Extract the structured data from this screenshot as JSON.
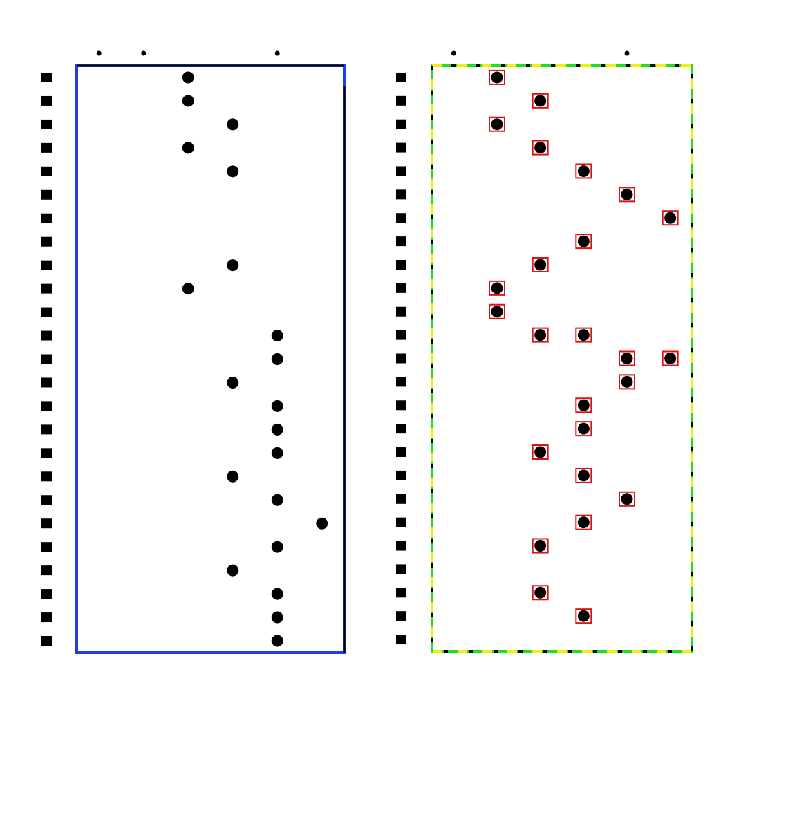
{
  "colors": {
    "left_frame": "#1f3fe0",
    "right_frame_a": "#22dd22",
    "right_frame_b": "#f2ee10",
    "dot": "#000000",
    "highlight_box": "#e01010",
    "background": "#ffffff"
  },
  "chart_data": [
    {
      "type": "scatter",
      "title": "",
      "xlabel": "",
      "ylabel": "",
      "grid": false,
      "legend": "none",
      "xlim": [
        0.5,
        6.5
      ],
      "ylim": [
        0.5,
        25.5
      ],
      "x_ticks": [
        {
          "value": 1,
          "label": ""
        },
        {
          "value": 2,
          "label": ""
        },
        {
          "value": 5,
          "label": ""
        }
      ],
      "row_labels": [
        "",
        "",
        "",
        "",
        "",
        "",
        "",
        "",
        "",
        "",
        "",
        "",
        "",
        "",
        "",
        "",
        "",
        "",
        "",
        "",
        "",
        "",
        "",
        "",
        ""
      ],
      "points": [
        {
          "row": 1,
          "x": 3
        },
        {
          "row": 2,
          "x": 3
        },
        {
          "row": 3,
          "x": 4
        },
        {
          "row": 4,
          "x": 3
        },
        {
          "row": 5,
          "x": 4
        },
        {
          "row": 9,
          "x": 4
        },
        {
          "row": 10,
          "x": 3
        },
        {
          "row": 12,
          "x": 5
        },
        {
          "row": 13,
          "x": 5
        },
        {
          "row": 14,
          "x": 4
        },
        {
          "row": 15,
          "x": 5
        },
        {
          "row": 16,
          "x": 5
        },
        {
          "row": 17,
          "x": 5
        },
        {
          "row": 18,
          "x": 4
        },
        {
          "row": 19,
          "x": 5
        },
        {
          "row": 20,
          "x": 6
        },
        {
          "row": 21,
          "x": 5
        },
        {
          "row": 22,
          "x": 4
        },
        {
          "row": 23,
          "x": 5
        },
        {
          "row": 24,
          "x": 5
        },
        {
          "row": 25,
          "x": 5
        }
      ]
    },
    {
      "type": "scatter",
      "title": "",
      "xlabel": "",
      "ylabel": "",
      "grid": false,
      "legend": "none",
      "xlim": [
        0.5,
        6.5
      ],
      "ylim": [
        0.5,
        25.5
      ],
      "x_ticks": [
        {
          "value": 1,
          "label": ""
        },
        {
          "value": 5,
          "label": ""
        }
      ],
      "row_labels": [
        "",
        "",
        "",
        "",
        "",
        "",
        "",
        "",
        "",
        "",
        "",
        "",
        "",
        "",
        "",
        "",
        "",
        "",
        "",
        "",
        "",
        "",
        "",
        "",
        ""
      ],
      "points": [
        {
          "row": 1,
          "x": 2
        },
        {
          "row": 2,
          "x": 3
        },
        {
          "row": 3,
          "x": 2
        },
        {
          "row": 4,
          "x": 3
        },
        {
          "row": 5,
          "x": 4
        },
        {
          "row": 6,
          "x": 5
        },
        {
          "row": 7,
          "x": 6
        },
        {
          "row": 8,
          "x": 4
        },
        {
          "row": 9,
          "x": 3
        },
        {
          "row": 10,
          "x": 2
        },
        {
          "row": 11,
          "x": 2
        },
        {
          "row": 12,
          "x": 3
        },
        {
          "row": 12,
          "x": 4
        },
        {
          "row": 13,
          "x": 5
        },
        {
          "row": 13,
          "x": 6
        },
        {
          "row": 14,
          "x": 5
        },
        {
          "row": 15,
          "x": 4
        },
        {
          "row": 16,
          "x": 4
        },
        {
          "row": 17,
          "x": 3
        },
        {
          "row": 18,
          "x": 4
        },
        {
          "row": 19,
          "x": 5
        },
        {
          "row": 20,
          "x": 4
        },
        {
          "row": 21,
          "x": 3
        },
        {
          "row": 23,
          "x": 3
        },
        {
          "row": 24,
          "x": 4
        }
      ],
      "highlighted": true
    }
  ]
}
